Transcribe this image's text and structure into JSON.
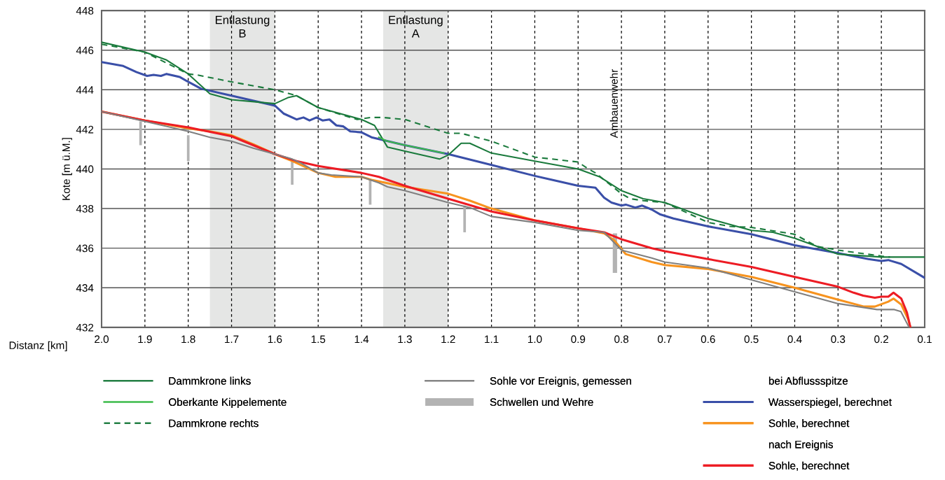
{
  "chart_data": {
    "type": "line",
    "xlabel": "Distanz [km]",
    "ylabel": "Kote [m ü.M.]",
    "xlim": [
      2.0,
      0.1
    ],
    "xticks": [
      {
        "value": 2.0,
        "label": "2.0"
      },
      1.9,
      1.8,
      1.7,
      1.6,
      1.5,
      1.4,
      1.3,
      1.2,
      1.1,
      {
        "value": 1.0,
        "label": "1.0"
      },
      0.9,
      0.8,
      0.7,
      0.6,
      0.5,
      0.4,
      0.3,
      0.2,
      0.1
    ],
    "ylim": [
      432,
      448
    ],
    "yticks": [
      432,
      434,
      436,
      438,
      440,
      442,
      444,
      446,
      448
    ],
    "grid": true,
    "legend": "bottom",
    "bands": [
      {
        "axis": "x",
        "from": 1.75,
        "to": 1.6,
        "label": "Entlastung\nB",
        "color": "#e5e6e5"
      },
      {
        "axis": "x",
        "from": 1.35,
        "to": 1.2,
        "label": "Entlastung\nA",
        "color": "#e5e6e5"
      }
    ],
    "annotations": [
      "Ambauenwehr",
      "bei Abflussspitze",
      "nach Ereignis"
    ],
    "series": [
      {
        "name": "Dammkrone links",
        "color": "#1a7a3c",
        "line_style": "solid",
        "x": [
          2.0,
          1.9,
          1.85,
          1.8,
          1.75,
          1.7,
          1.6,
          1.57,
          1.55,
          1.5,
          1.4,
          1.37,
          1.34,
          1.3,
          1.22,
          1.2,
          1.17,
          1.15,
          1.1,
          1.0,
          0.9,
          0.85,
          0.8,
          0.75,
          0.7,
          0.6,
          0.5,
          0.45,
          0.4,
          0.35,
          0.3,
          0.2,
          0.1
        ],
        "values": [
          446.4,
          445.9,
          445.5,
          444.8,
          443.8,
          443.5,
          443.3,
          443.6,
          443.7,
          443.1,
          442.5,
          442.2,
          441.1,
          440.9,
          440.5,
          440.7,
          441.3,
          441.3,
          440.8,
          440.4,
          440.0,
          439.6,
          438.9,
          438.5,
          438.3,
          437.5,
          436.9,
          436.8,
          436.5,
          436.1,
          435.7,
          435.55,
          435.55
        ]
      },
      {
        "name": "Oberkante Kippelemente",
        "color": "#3dbb4a",
        "line_style": "solid",
        "x": [
          1.36,
          1.34,
          1.3,
          1.21
        ],
        "values": [
          441.6,
          441.4,
          441.2,
          440.8
        ]
      },
      {
        "name": "Dammkrone rechts",
        "color": "#1a7a3c",
        "line_style": "dashed",
        "x": [
          2.0,
          1.9,
          1.8,
          1.78,
          1.7,
          1.6,
          1.55,
          1.5,
          1.41,
          1.38,
          1.35,
          1.3,
          1.2,
          1.17,
          1.1,
          1.0,
          0.9,
          0.88,
          0.86,
          0.8,
          0.78,
          0.75,
          0.7,
          0.6,
          0.55,
          0.5,
          0.4,
          0.35,
          0.3,
          0.2,
          0.18
        ],
        "values": [
          446.3,
          445.9,
          444.8,
          444.75,
          444.4,
          444.0,
          443.7,
          443.1,
          442.5,
          442.6,
          442.6,
          442.5,
          441.8,
          441.8,
          441.4,
          440.6,
          440.35,
          440.05,
          439.8,
          438.75,
          438.5,
          438.4,
          438.3,
          437.3,
          437.1,
          437.05,
          436.7,
          436.1,
          435.9,
          435.6,
          435.55
        ]
      },
      {
        "name": "Sohle vor Ereignis, gemessen",
        "color": "#808080",
        "line_style": "solid",
        "x": [
          2.0,
          1.9,
          1.8,
          1.75,
          1.7,
          1.65,
          1.6,
          1.56,
          1.54,
          1.5,
          1.47,
          1.4,
          1.36,
          1.34,
          1.3,
          1.2,
          1.15,
          1.1,
          1.0,
          0.9,
          0.84,
          0.8,
          0.73,
          0.7,
          0.6,
          0.5,
          0.4,
          0.3,
          0.21,
          0.17,
          0.155,
          0.136
        ],
        "values": [
          442.9,
          442.4,
          441.9,
          441.6,
          441.4,
          441.05,
          440.75,
          440.5,
          440.3,
          439.8,
          439.7,
          439.6,
          439.3,
          439.1,
          438.9,
          438.3,
          438.05,
          437.6,
          437.3,
          436.9,
          436.8,
          435.9,
          435.5,
          435.3,
          435.0,
          434.4,
          433.8,
          433.2,
          432.9,
          432.9,
          432.8,
          432.0
        ]
      },
      {
        "name": "Schwellen und Wehre",
        "color": "#b3b3b3",
        "type": "bar",
        "x": [
          1.91,
          1.8,
          1.56,
          1.38,
          1.162,
          0.815
        ],
        "base": [
          441.2,
          440.4,
          439.2,
          438.2,
          436.8,
          434.75
        ],
        "values": [
          1.2,
          1.3,
          1.25,
          1.25,
          1.35,
          2.0
        ]
      },
      {
        "name": "Wasserspiegel, berechnet",
        "color": "#3a4fa8",
        "line_style": "solid",
        "x": [
          2.0,
          1.95,
          1.92,
          1.895,
          1.88,
          1.863,
          1.85,
          1.82,
          1.8,
          1.77,
          1.7,
          1.6,
          1.58,
          1.55,
          1.534,
          1.52,
          1.504,
          1.49,
          1.474,
          1.458,
          1.442,
          1.426,
          1.4,
          1.377,
          1.3,
          1.2,
          1.1,
          1.0,
          0.9,
          0.86,
          0.84,
          0.823,
          0.8,
          0.79,
          0.768,
          0.752,
          0.73,
          0.71,
          0.68,
          0.65,
          0.6,
          0.5,
          0.4,
          0.3,
          0.23,
          0.2,
          0.184,
          0.154,
          0.1
        ],
        "values": [
          445.4,
          445.2,
          444.9,
          444.7,
          444.75,
          444.7,
          444.8,
          444.65,
          444.4,
          444.05,
          443.7,
          443.2,
          442.8,
          442.5,
          442.6,
          442.45,
          442.6,
          442.45,
          442.5,
          442.2,
          442.15,
          441.9,
          441.85,
          441.6,
          441.2,
          440.75,
          440.2,
          439.65,
          439.15,
          439.05,
          438.55,
          438.3,
          438.15,
          438.2,
          438.05,
          438.15,
          437.95,
          437.7,
          437.5,
          437.35,
          437.1,
          436.7,
          436.15,
          435.75,
          435.45,
          435.35,
          435.4,
          435.2,
          434.5
        ]
      },
      {
        "name": "Sohle, berechnet",
        "color": "#f7931e",
        "line_style": "solid",
        "x": [
          2.0,
          1.9,
          1.8,
          1.75,
          1.7,
          1.65,
          1.6,
          1.56,
          1.52,
          1.5,
          1.46,
          1.4,
          1.377,
          1.3,
          1.2,
          1.15,
          1.1,
          1.0,
          0.9,
          0.84,
          0.817,
          0.79,
          0.73,
          0.7,
          0.6,
          0.5,
          0.4,
          0.3,
          0.24,
          0.215,
          0.184,
          0.172,
          0.154,
          0.138,
          0.133
        ],
        "values": [
          442.9,
          442.45,
          442.05,
          441.9,
          441.7,
          441.25,
          440.75,
          440.4,
          440.0,
          439.8,
          439.6,
          439.6,
          439.45,
          439.1,
          438.75,
          438.4,
          438.0,
          437.4,
          437.0,
          436.75,
          436.4,
          435.7,
          435.3,
          435.15,
          434.95,
          434.55,
          434.0,
          433.4,
          433.05,
          433.05,
          433.3,
          433.45,
          433.15,
          432.4,
          432.0
        ]
      },
      {
        "name": "Sohle, berechnet",
        "color": "#ed1c24",
        "line_style": "solid",
        "x": [
          2.0,
          1.9,
          1.8,
          1.7,
          1.6,
          1.55,
          1.5,
          1.4,
          1.36,
          1.3,
          1.2,
          1.1,
          1.0,
          0.9,
          0.84,
          0.8,
          0.73,
          0.7,
          0.6,
          0.5,
          0.4,
          0.3,
          0.264,
          0.242,
          0.215,
          0.2,
          0.184,
          0.172,
          0.154,
          0.141,
          0.133
        ],
        "values": [
          442.9,
          442.45,
          442.1,
          441.65,
          440.75,
          440.4,
          440.15,
          439.8,
          439.6,
          439.15,
          438.5,
          437.85,
          437.4,
          437.0,
          436.8,
          436.45,
          436.0,
          435.85,
          435.45,
          435.05,
          434.55,
          434.05,
          433.75,
          433.6,
          433.5,
          433.55,
          433.55,
          433.75,
          433.45,
          432.75,
          432.0
        ]
      }
    ]
  }
}
